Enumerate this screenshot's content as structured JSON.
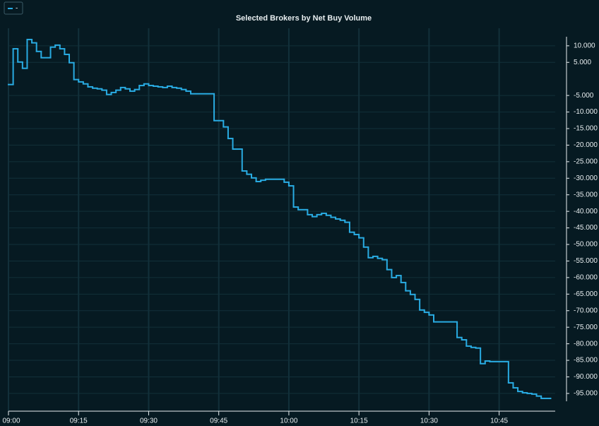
{
  "chart_data": {
    "type": "step",
    "title": "Selected Brokers by Net Buy Volume",
    "series": [
      {
        "name": "-",
        "color": "#29abe2",
        "x": [
          "09:00",
          "09:01",
          "09:02",
          "09:03",
          "09:04",
          "09:05",
          "09:06",
          "09:07",
          "09:09",
          "09:10",
          "09:11",
          "09:12",
          "09:13",
          "09:14",
          "09:15",
          "09:16",
          "09:17",
          "09:18",
          "09:19",
          "09:20",
          "09:21",
          "09:22",
          "09:23",
          "09:24",
          "09:25",
          "09:26",
          "09:27",
          "09:28",
          "09:29",
          "09:30",
          "09:31",
          "09:32",
          "09:33",
          "09:34",
          "09:35",
          "09:36",
          "09:37",
          "09:38",
          "09:39",
          "09:44",
          "09:46",
          "09:47",
          "09:48",
          "09:50",
          "09:51",
          "09:52",
          "09:53",
          "09:54",
          "09:55",
          "09:59",
          "10:00",
          "10:01",
          "10:02",
          "10:04",
          "10:05",
          "10:06",
          "10:07",
          "10:08",
          "10:09",
          "10:10",
          "10:11",
          "10:12",
          "10:13",
          "10:14",
          "10:15",
          "10:16",
          "10:17",
          "10:18",
          "10:19",
          "10:20",
          "10:21",
          "10:22",
          "10:23",
          "10:24",
          "10:25",
          "10:26",
          "10:27",
          "10:28",
          "10:29",
          "10:30",
          "10:31",
          "10:36",
          "10:37",
          "10:38",
          "10:39",
          "10:40",
          "10:41",
          "10:42",
          "10:43",
          "10:47",
          "10:48",
          "10:49",
          "10:50",
          "10:51",
          "10:52",
          "10:53",
          "10:54",
          "10:56"
        ],
        "values": [
          -1700,
          9100,
          5100,
          3200,
          11900,
          10900,
          8300,
          6400,
          9600,
          10200,
          9100,
          7400,
          4900,
          -200,
          -900,
          -1500,
          -2400,
          -2800,
          -3000,
          -3400,
          -4700,
          -4100,
          -3400,
          -2600,
          -3000,
          -3700,
          -3200,
          -2000,
          -1500,
          -2000,
          -2200,
          -2400,
          -2600,
          -2200,
          -2600,
          -2800,
          -3200,
          -3700,
          -4500,
          -12600,
          -14500,
          -18000,
          -21200,
          -27800,
          -28800,
          -29900,
          -31000,
          -30600,
          -30300,
          -31200,
          -32300,
          -38700,
          -39500,
          -41000,
          -41600,
          -41000,
          -40600,
          -41200,
          -41800,
          -42300,
          -42700,
          -43300,
          -46300,
          -47000,
          -48000,
          -50800,
          -54000,
          -53600,
          -54200,
          -54600,
          -57600,
          -60000,
          -59400,
          -61500,
          -64000,
          -65100,
          -66600,
          -69800,
          -70500,
          -71300,
          -73400,
          -78100,
          -78800,
          -80700,
          -81100,
          -81300,
          -86000,
          -85200,
          -85400,
          -91800,
          -93300,
          -94400,
          -94800,
          -95000,
          -95200,
          -95800,
          -96500,
          -96500
        ]
      }
    ],
    "xlim": [
      "09:00",
      "10:57"
    ],
    "xticks": [
      "09:00",
      "09:15",
      "09:30",
      "09:45",
      "10:00",
      "10:15",
      "10:30",
      "10:45"
    ],
    "ylim": [
      -99500,
      15300
    ],
    "yticks": [
      {
        "value": 10000,
        "label": "10.000"
      },
      {
        "value": 5000,
        "label": "5.000"
      },
      {
        "value": -5000,
        "label": "-5.000"
      },
      {
        "value": -10000,
        "label": "-10.000"
      },
      {
        "value": -15000,
        "label": "-15.000"
      },
      {
        "value": -20000,
        "label": "-20.000"
      },
      {
        "value": -25000,
        "label": "-25.000"
      },
      {
        "value": -30000,
        "label": "-30.000"
      },
      {
        "value": -35000,
        "label": "-35.000"
      },
      {
        "value": -40000,
        "label": "-40.000"
      },
      {
        "value": -45000,
        "label": "-45.000"
      },
      {
        "value": -50000,
        "label": "-50.000"
      },
      {
        "value": -55000,
        "label": "-55.000"
      },
      {
        "value": -60000,
        "label": "-60.000"
      },
      {
        "value": -65000,
        "label": "-65.000"
      },
      {
        "value": -70000,
        "label": "-70.000"
      },
      {
        "value": -75000,
        "label": "-75.000"
      },
      {
        "value": -80000,
        "label": "-80.000"
      },
      {
        "value": -85000,
        "label": "-85.000"
      },
      {
        "value": -90000,
        "label": "-90.000"
      },
      {
        "value": -95000,
        "label": "-95.000"
      }
    ],
    "grid": true,
    "legend": "top-left"
  }
}
